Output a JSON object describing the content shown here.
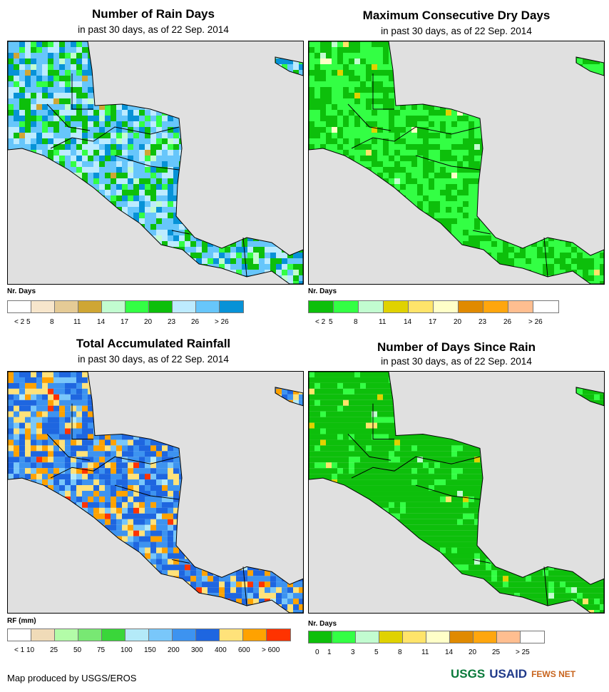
{
  "panels": [
    {
      "title": "Number of Rain Days",
      "subtitle": "in past 30 days, as of 22 Sep. 2014",
      "legend_title": "Nr. Days",
      "labels": [
        "< 2",
        "5",
        "8",
        "11",
        "14",
        "17",
        "20",
        "23",
        "26",
        "> 26"
      ],
      "colors": [
        "#ffffff",
        "#f7e6cc",
        "#e5cb96",
        "#cfa634",
        "#c2fcd0",
        "#33ff44",
        "#0dbf0b",
        "#bdebff",
        "#67c6fb",
        "#0792d7"
      ],
      "weights": [
        0,
        0,
        0,
        0.01,
        0.04,
        0.1,
        0.2,
        0.2,
        0.3,
        0.15
      ]
    },
    {
      "title": "Maximum Consecutive Dry Days",
      "subtitle": "in past 30 days, as of 22 Sep. 2014",
      "legend_title": "Nr. Days",
      "labels": [
        "< 2",
        "5",
        "8",
        "11",
        "14",
        "17",
        "20",
        "23",
        "26",
        "> 26"
      ],
      "colors": [
        "#0dbf0b",
        "#33ff44",
        "#c2fcd0",
        "#e0d200",
        "#ffe46a",
        "#ffffc8",
        "#e08a00",
        "#ffa60e",
        "#ffbe90",
        "#ffffff"
      ],
      "weights": [
        0.45,
        0.53,
        0.005,
        0.005,
        0.005,
        0.005,
        0,
        0,
        0,
        0
      ]
    },
    {
      "title": "Total Accumulated Rainfall",
      "subtitle": "in past 30 days, as of 22 Sep. 2014",
      "legend_title": "RF (mm)",
      "labels": [
        "< 1",
        "10",
        "25",
        "50",
        "75",
        "100",
        "150",
        "200",
        "300",
        "400",
        "600",
        "> 600"
      ],
      "colors": [
        "#ffffff",
        "#f0dbb8",
        "#b3fca8",
        "#78e873",
        "#3ad63a",
        "#b4eaf8",
        "#79c7fa",
        "#3d93f0",
        "#1e66e0",
        "#ffe27a",
        "#ffa200",
        "#ff3300"
      ],
      "weights": [
        0,
        0,
        0,
        0,
        0,
        0.02,
        0.08,
        0.3,
        0.3,
        0.15,
        0.12,
        0.03
      ]
    },
    {
      "title": "Number of Days Since Rain",
      "subtitle": "in past 30 days, as of 22 Sep. 2014",
      "legend_title": "Nr. Days",
      "labels": [
        "0",
        "1",
        "3",
        "5",
        "8",
        "11",
        "14",
        "20",
        "25",
        "> 25"
      ],
      "colors": [
        "#0dbf0b",
        "#33ff44",
        "#c2fcd0",
        "#e0d200",
        "#ffe46a",
        "#ffffc8",
        "#e08a00",
        "#ffa60e",
        "#ffbe90",
        "#ffffff"
      ],
      "weights": [
        0.85,
        0.12,
        0.01,
        0.01,
        0.01,
        0,
        0,
        0,
        0,
        0
      ]
    }
  ],
  "credit": "Map produced by USGS/EROS",
  "logos": {
    "usgs": "USGS",
    "usaid": "USAID",
    "fewsnet": "FEWS NET"
  }
}
